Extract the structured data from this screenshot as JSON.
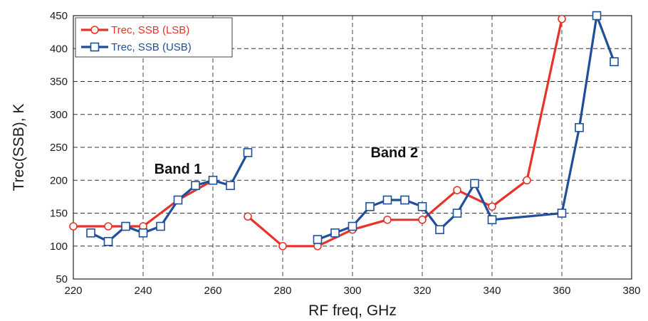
{
  "chart_data": {
    "type": "line",
    "title": "",
    "xlabel": "RF freq, GHz",
    "ylabel": "Trec(SSB), K",
    "xlim": [
      220,
      380
    ],
    "ylim": [
      50,
      450
    ],
    "xticks": [
      220,
      240,
      260,
      280,
      300,
      320,
      340,
      360,
      380
    ],
    "yticks": [
      50,
      100,
      150,
      200,
      250,
      300,
      350,
      400,
      450
    ],
    "grid": true,
    "grid_style": "dashed",
    "legend_position": "top-left",
    "series": [
      {
        "name": "Trec, SSB (LSB)",
        "color": "#e8332a",
        "marker": "circle",
        "segments": [
          [
            [
              220,
              130
            ],
            [
              230,
              130
            ],
            [
              240,
              130
            ],
            [
              250,
              170
            ],
            [
              260,
              200
            ]
          ],
          [
            [
              270,
              145
            ],
            [
              280,
              100
            ],
            [
              290,
              100
            ],
            [
              300,
              125
            ],
            [
              310,
              140
            ],
            [
              320,
              140
            ],
            [
              330,
              185
            ],
            [
              340,
              160
            ],
            [
              350,
              200
            ],
            [
              360,
              445
            ]
          ]
        ]
      },
      {
        "name": "Trec, SSB (USB)",
        "color": "#1f4e9a",
        "marker": "square",
        "segments": [
          [
            [
              225,
              120
            ],
            [
              230,
              107
            ],
            [
              235,
              130
            ],
            [
              240,
              120
            ],
            [
              245,
              130
            ],
            [
              250,
              170
            ],
            [
              255,
              192
            ],
            [
              260,
              200
            ],
            [
              265,
              192
            ],
            [
              270,
              242
            ]
          ],
          [
            [
              290,
              110
            ],
            [
              295,
              120
            ],
            [
              300,
              130
            ],
            [
              305,
              160
            ],
            [
              310,
              170
            ],
            [
              315,
              170
            ],
            [
              320,
              160
            ],
            [
              325,
              125
            ],
            [
              330,
              150
            ],
            [
              335,
              195
            ],
            [
              340,
              140
            ],
            [
              360,
              150
            ],
            [
              365,
              280
            ],
            [
              370,
              450
            ],
            [
              375,
              380
            ]
          ]
        ]
      }
    ],
    "annotations": [
      {
        "text": "Band 1",
        "x": 250,
        "y": 210
      },
      {
        "text": "Band 2",
        "x": 312,
        "y": 235
      }
    ]
  }
}
